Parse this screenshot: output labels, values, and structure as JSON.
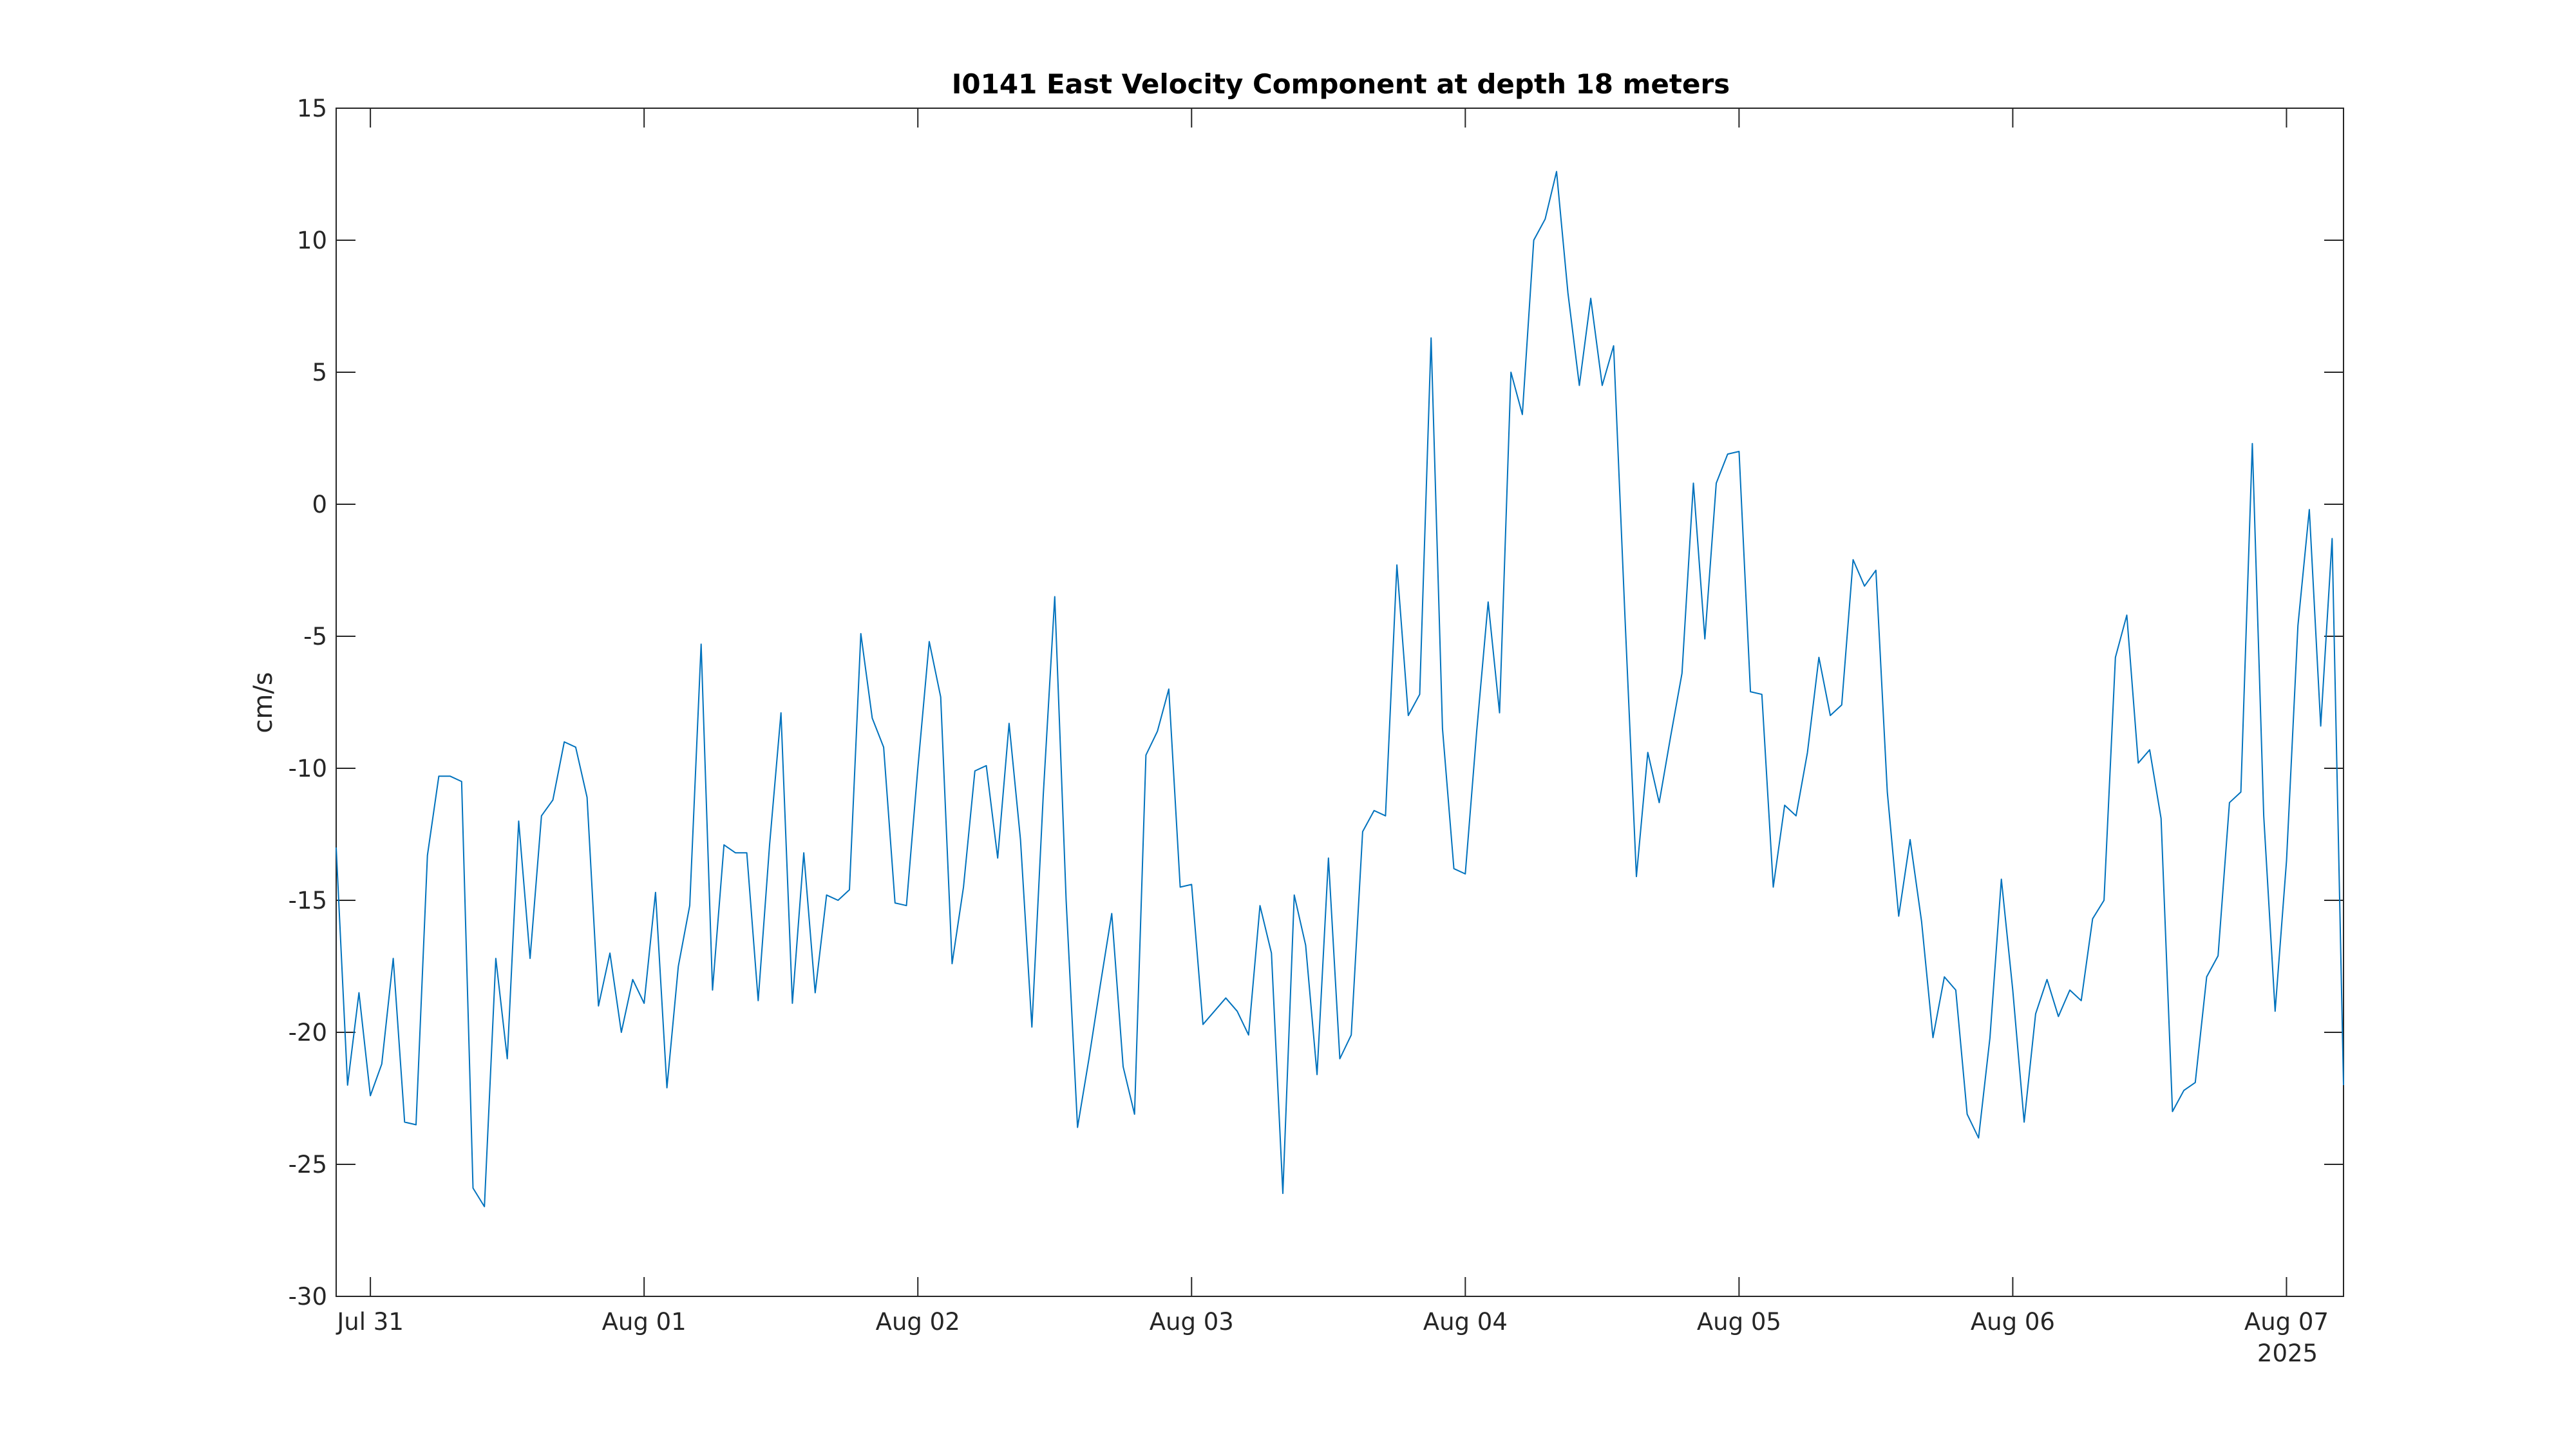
{
  "chart_data": {
    "type": "line",
    "title": "I0141 East Velocity Component at depth 18 meters",
    "xlabel": "",
    "ylabel": "cm/s",
    "x_ticks": [
      "Jul 31",
      "Aug 01",
      "Aug 02",
      "Aug 03",
      "Aug 04",
      "Aug 05",
      "Aug 06",
      "Aug 07"
    ],
    "x_tick_days": [
      1.0,
      2.0,
      3.0,
      4.0,
      5.0,
      6.0,
      7.0,
      8.0
    ],
    "x_year_label": "2025",
    "xlim_days": [
      0.875,
      8.2083
    ],
    "y_ticks": [
      "15",
      "10",
      "5",
      "0",
      "-5",
      "-10",
      "-15",
      "-20",
      "-25",
      "-30"
    ],
    "ylim": [
      -30,
      15
    ],
    "grid": false,
    "legend": "none",
    "series": [
      {
        "color": "#0072BD",
        "start_day": 0.875,
        "step_days": 0.041667,
        "values": [
          -13.0,
          -22.0,
          -18.5,
          -22.4,
          -21.2,
          -17.2,
          -23.4,
          -23.5,
          -13.3,
          -10.3,
          -10.3,
          -10.5,
          -25.9,
          -26.6,
          -17.2,
          -21.0,
          -12.0,
          -17.2,
          -11.8,
          -11.2,
          -9.0,
          -9.2,
          -11.1,
          -19.0,
          -17.0,
          -20.0,
          -18.0,
          -18.9,
          -14.7,
          -22.1,
          -17.5,
          -15.2,
          -5.3,
          -18.4,
          -12.9,
          -13.2,
          -13.2,
          -18.8,
          -12.9,
          -7.9,
          -18.9,
          -13.2,
          -18.5,
          -14.8,
          -15.0,
          -14.6,
          -4.9,
          -8.1,
          -9.2,
          -15.1,
          -15.2,
          -10.0,
          -5.2,
          -7.3,
          -17.4,
          -14.5,
          -10.1,
          -9.9,
          -13.4,
          -8.3,
          -12.7,
          -19.8,
          -11.0,
          -3.5,
          -15.0,
          -23.6,
          -21.0,
          -18.2,
          -15.5,
          -21.3,
          -23.1,
          -9.5,
          -8.6,
          -7.0,
          -14.5,
          -14.4,
          -19.7,
          -19.2,
          -18.7,
          -19.2,
          -20.1,
          -15.2,
          -17.0,
          -26.1,
          -14.8,
          -16.7,
          -21.6,
          -13.4,
          -21.0,
          -20.1,
          -12.4,
          -11.6,
          -11.8,
          -2.3,
          -8.0,
          -7.2,
          6.3,
          -8.5,
          -13.8,
          -14.0,
          -8.6,
          -3.7,
          -7.9,
          5.0,
          3.4,
          10.0,
          10.8,
          12.6,
          8.0,
          4.5,
          7.8,
          4.5,
          6.0,
          -4.3,
          -14.1,
          -9.4,
          -11.3,
          -8.8,
          -6.4,
          0.8,
          -5.1,
          0.8,
          1.9,
          2.0,
          -7.1,
          -7.2,
          -14.5,
          -11.4,
          -11.8,
          -9.4,
          -5.8,
          -8.0,
          -7.6,
          -2.1,
          -3.1,
          -2.5,
          -10.9,
          -15.6,
          -12.7,
          -15.8,
          -20.2,
          -17.9,
          -18.4,
          -23.1,
          -24.0,
          -20.2,
          -14.2,
          -18.4,
          -23.4,
          -19.3,
          -18.0,
          -19.4,
          -18.4,
          -18.8,
          -15.7,
          -15.0,
          -5.8,
          -4.2,
          -9.8,
          -9.3,
          -11.9,
          -23.0,
          -22.2,
          -21.9,
          -17.9,
          -17.1,
          -11.3,
          -10.9,
          2.3,
          -11.8,
          -19.2,
          -13.5,
          -4.6,
          -0.2,
          -8.4,
          -1.3,
          -22.0
        ]
      }
    ]
  }
}
